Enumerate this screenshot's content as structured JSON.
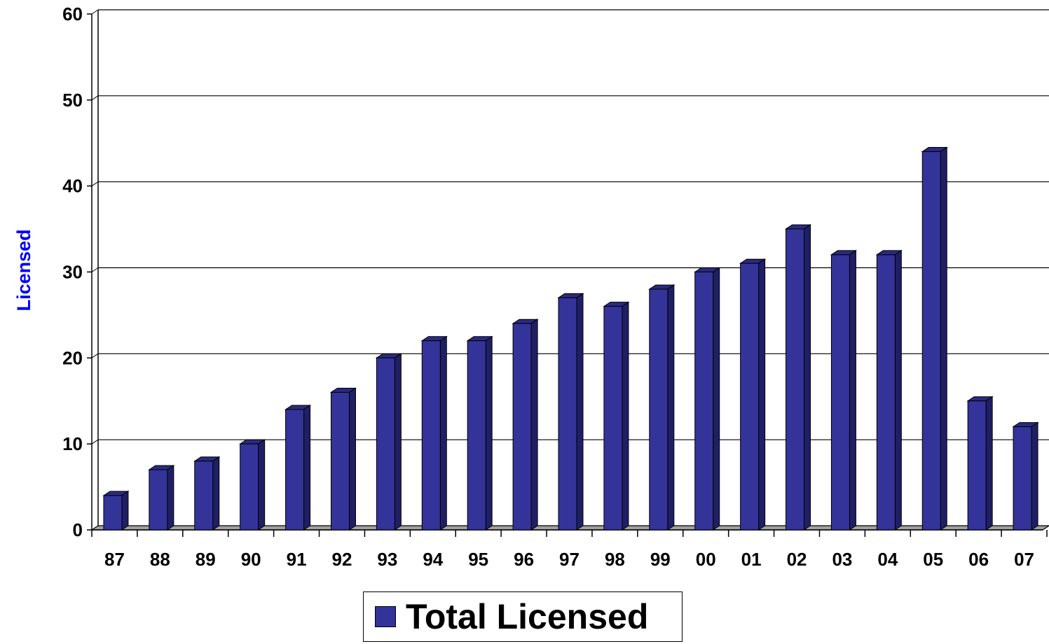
{
  "chart_data": {
    "type": "bar",
    "categories": [
      "87",
      "88",
      "89",
      "90",
      "91",
      "92",
      "93",
      "94",
      "95",
      "96",
      "97",
      "98",
      "99",
      "00",
      "01",
      "02",
      "03",
      "04",
      "05",
      "06",
      "07"
    ],
    "series": [
      {
        "name": "Total Licensed",
        "values": [
          4,
          7,
          8,
          10,
          14,
          16,
          20,
          22,
          22,
          24,
          27,
          26,
          28,
          30,
          31,
          35,
          32,
          32,
          44,
          15,
          12
        ]
      }
    ],
    "ylabel": "Licensed",
    "xlabel": "",
    "ylim": [
      0,
      60
    ],
    "yticks": [
      0,
      10,
      20,
      30,
      40,
      50,
      60
    ],
    "grid": true,
    "legend_position": "bottom",
    "bar_style": "3d-column",
    "colors": {
      "bar_front": "#333399",
      "bar_top": "#2a2a80",
      "bar_side": "#1f1f66",
      "ylabel": "#0000ff",
      "floor": "#a0a0a0"
    }
  }
}
